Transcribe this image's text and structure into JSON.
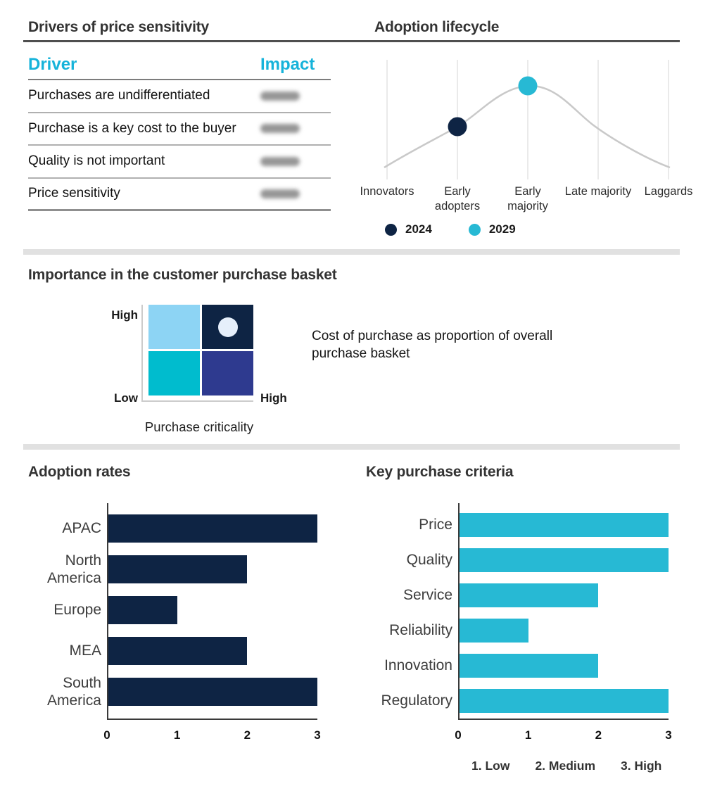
{
  "colors": {
    "navy": "#0e2444",
    "cyan": "#27b9d4",
    "accent_cyan": "#16b3da",
    "divider": "#e1e1e1"
  },
  "drivers": {
    "title": "Drivers of price sensitivity",
    "columns": [
      "Driver",
      "Impact"
    ],
    "impact_values_redacted": true,
    "rows": [
      {
        "driver": "Purchases are undifferentiated",
        "impact": ""
      },
      {
        "driver": "Purchase is a key cost to the buyer",
        "impact": ""
      },
      {
        "driver": "Quality is not important",
        "impact": ""
      },
      {
        "driver": "Price sensitivity",
        "impact": ""
      }
    ]
  },
  "chart_data": [
    {
      "id": "adoption-lifecycle",
      "type": "line",
      "title": "Adoption lifecycle",
      "curve": "bell-shaped adoption curve, gray",
      "x_categories": [
        "Innovators",
        "Early adopters",
        "Early majority",
        "Late majority",
        "Laggards"
      ],
      "series": [
        {
          "name": "2024",
          "x": "Early adopters",
          "color": "#0e2444"
        },
        {
          "name": "2029",
          "x": "Early majority",
          "color": "#27b9d4"
        }
      ],
      "legend_position": "bottom"
    },
    {
      "id": "purchase-basket-matrix",
      "type": "heatmap",
      "title": "Importance in the customer purchase basket",
      "x_axis": {
        "label": "Purchase criticality",
        "high": "High"
      },
      "y_axis": {
        "high": "High",
        "low": "Low"
      },
      "quadrant_colors": {
        "top_left": "#8dd4f4",
        "top_right": "#0e2444",
        "bottom_left": "#00bcce",
        "bottom_right": "#2e3a8f"
      },
      "marker_quadrant": "top_right",
      "annotation": "Cost of purchase as proportion of overall purchase basket"
    },
    {
      "id": "adoption-rates",
      "type": "bar",
      "orientation": "horizontal",
      "title": "Adoption rates",
      "categories": [
        "APAC",
        "North America",
        "Europe",
        "MEA",
        "South America"
      ],
      "values": [
        3,
        2,
        1,
        2,
        3
      ],
      "xlim": [
        0,
        3
      ],
      "x_ticks": [
        "0",
        "1",
        "2",
        "3"
      ],
      "bar_color": "#0e2444"
    },
    {
      "id": "key-purchase-criteria",
      "type": "bar",
      "orientation": "horizontal",
      "title": "Key purchase criteria",
      "categories": [
        "Price",
        "Quality",
        "Service",
        "Reliability",
        "Innovation",
        "Regulatory"
      ],
      "values": [
        3,
        3,
        2,
        1,
        2,
        3
      ],
      "xlim": [
        0,
        3
      ],
      "x_ticks": [
        "0",
        "1",
        "2",
        "3"
      ],
      "bar_color": "#27b9d4",
      "scale_note": [
        "1. Low",
        "2. Medium",
        "3. High"
      ]
    }
  ]
}
